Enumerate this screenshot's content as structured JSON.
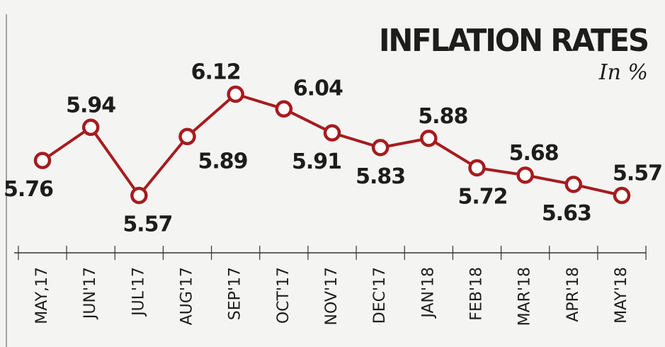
{
  "chart_data": {
    "type": "line",
    "title": "INFLATION RATES",
    "subtitle": "In %",
    "categories": [
      "MAY,17",
      "JUN'17",
      "JUL'17",
      "AUG'17",
      "SEP'17",
      "OCT'17",
      "NOV'17",
      "DEC'17",
      "JAN'18",
      "FEB'18",
      "MAR'18",
      "APR'18",
      "MAY'18"
    ],
    "values": [
      5.76,
      5.94,
      5.57,
      5.89,
      6.12,
      6.04,
      5.91,
      5.83,
      5.88,
      5.72,
      5.68,
      5.63,
      5.57
    ],
    "color": "#a51c1f"
  }
}
